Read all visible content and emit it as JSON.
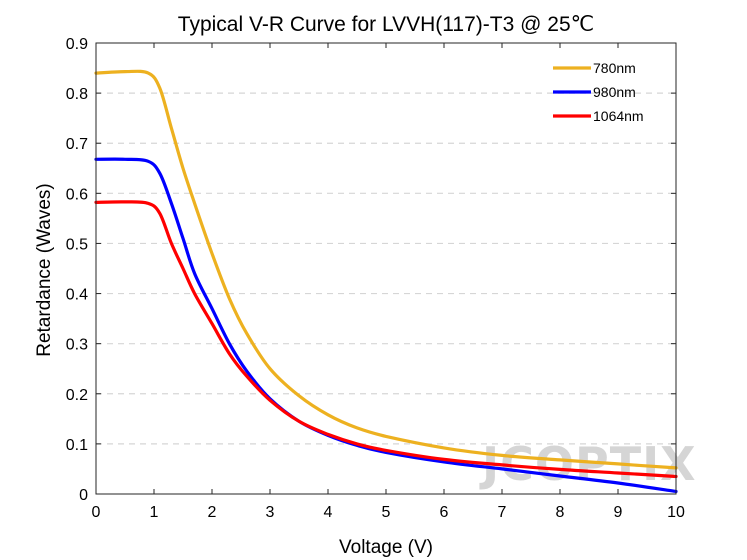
{
  "watermark": "JCOPTIX",
  "chart_data": {
    "type": "line",
    "title": "Typical V-R Curve for LVVH(117)-T3 @ 25℃",
    "xlabel": "Voltage (V)",
    "ylabel": "Retardance (Waves)",
    "xlim": [
      0,
      10
    ],
    "ylim": [
      0,
      0.9
    ],
    "xticks": [
      "0",
      "1",
      "2",
      "3",
      "4",
      "5",
      "6",
      "7",
      "8",
      "9",
      "10"
    ],
    "yticks": [
      "0",
      "0.1",
      "0.2",
      "0.3",
      "0.4",
      "0.5",
      "0.6",
      "0.7",
      "0.8",
      "0.9"
    ],
    "grid": "horizontal-dashed",
    "legend_position": "top-right",
    "series": [
      {
        "name": "780nm",
        "color": "#EDB120",
        "x": [
          0,
          0.5,
          0.9,
          1.1,
          1.3,
          1.5,
          1.7,
          2.0,
          2.3,
          2.6,
          3.0,
          3.5,
          4.0,
          4.5,
          5.0,
          6.0,
          7.0,
          8.0,
          9.0,
          10.0
        ],
        "y": [
          0.84,
          0.843,
          0.84,
          0.81,
          0.73,
          0.65,
          0.58,
          0.48,
          0.39,
          0.32,
          0.25,
          0.196,
          0.158,
          0.132,
          0.115,
          0.092,
          0.077,
          0.068,
          0.06,
          0.052
        ]
      },
      {
        "name": "980nm",
        "color": "#0000FF",
        "x": [
          0,
          0.5,
          0.9,
          1.1,
          1.3,
          1.5,
          1.7,
          2.0,
          2.3,
          2.6,
          3.0,
          3.5,
          4.0,
          4.5,
          5.0,
          6.0,
          7.0,
          8.0,
          9.0,
          10.0
        ],
        "y": [
          0.668,
          0.668,
          0.664,
          0.64,
          0.58,
          0.51,
          0.44,
          0.37,
          0.3,
          0.245,
          0.19,
          0.145,
          0.117,
          0.097,
          0.083,
          0.064,
          0.05,
          0.036,
          0.022,
          0.005
        ]
      },
      {
        "name": "1064nm",
        "color": "#FF0000",
        "x": [
          0,
          0.5,
          0.9,
          1.1,
          1.3,
          1.5,
          1.7,
          2.0,
          2.3,
          2.6,
          3.0,
          3.5,
          4.0,
          4.5,
          5.0,
          6.0,
          7.0,
          8.0,
          9.0,
          10.0
        ],
        "y": [
          0.582,
          0.583,
          0.58,
          0.56,
          0.5,
          0.45,
          0.4,
          0.34,
          0.28,
          0.235,
          0.187,
          0.145,
          0.119,
          0.1,
          0.087,
          0.069,
          0.058,
          0.049,
          0.042,
          0.035
        ]
      }
    ]
  }
}
